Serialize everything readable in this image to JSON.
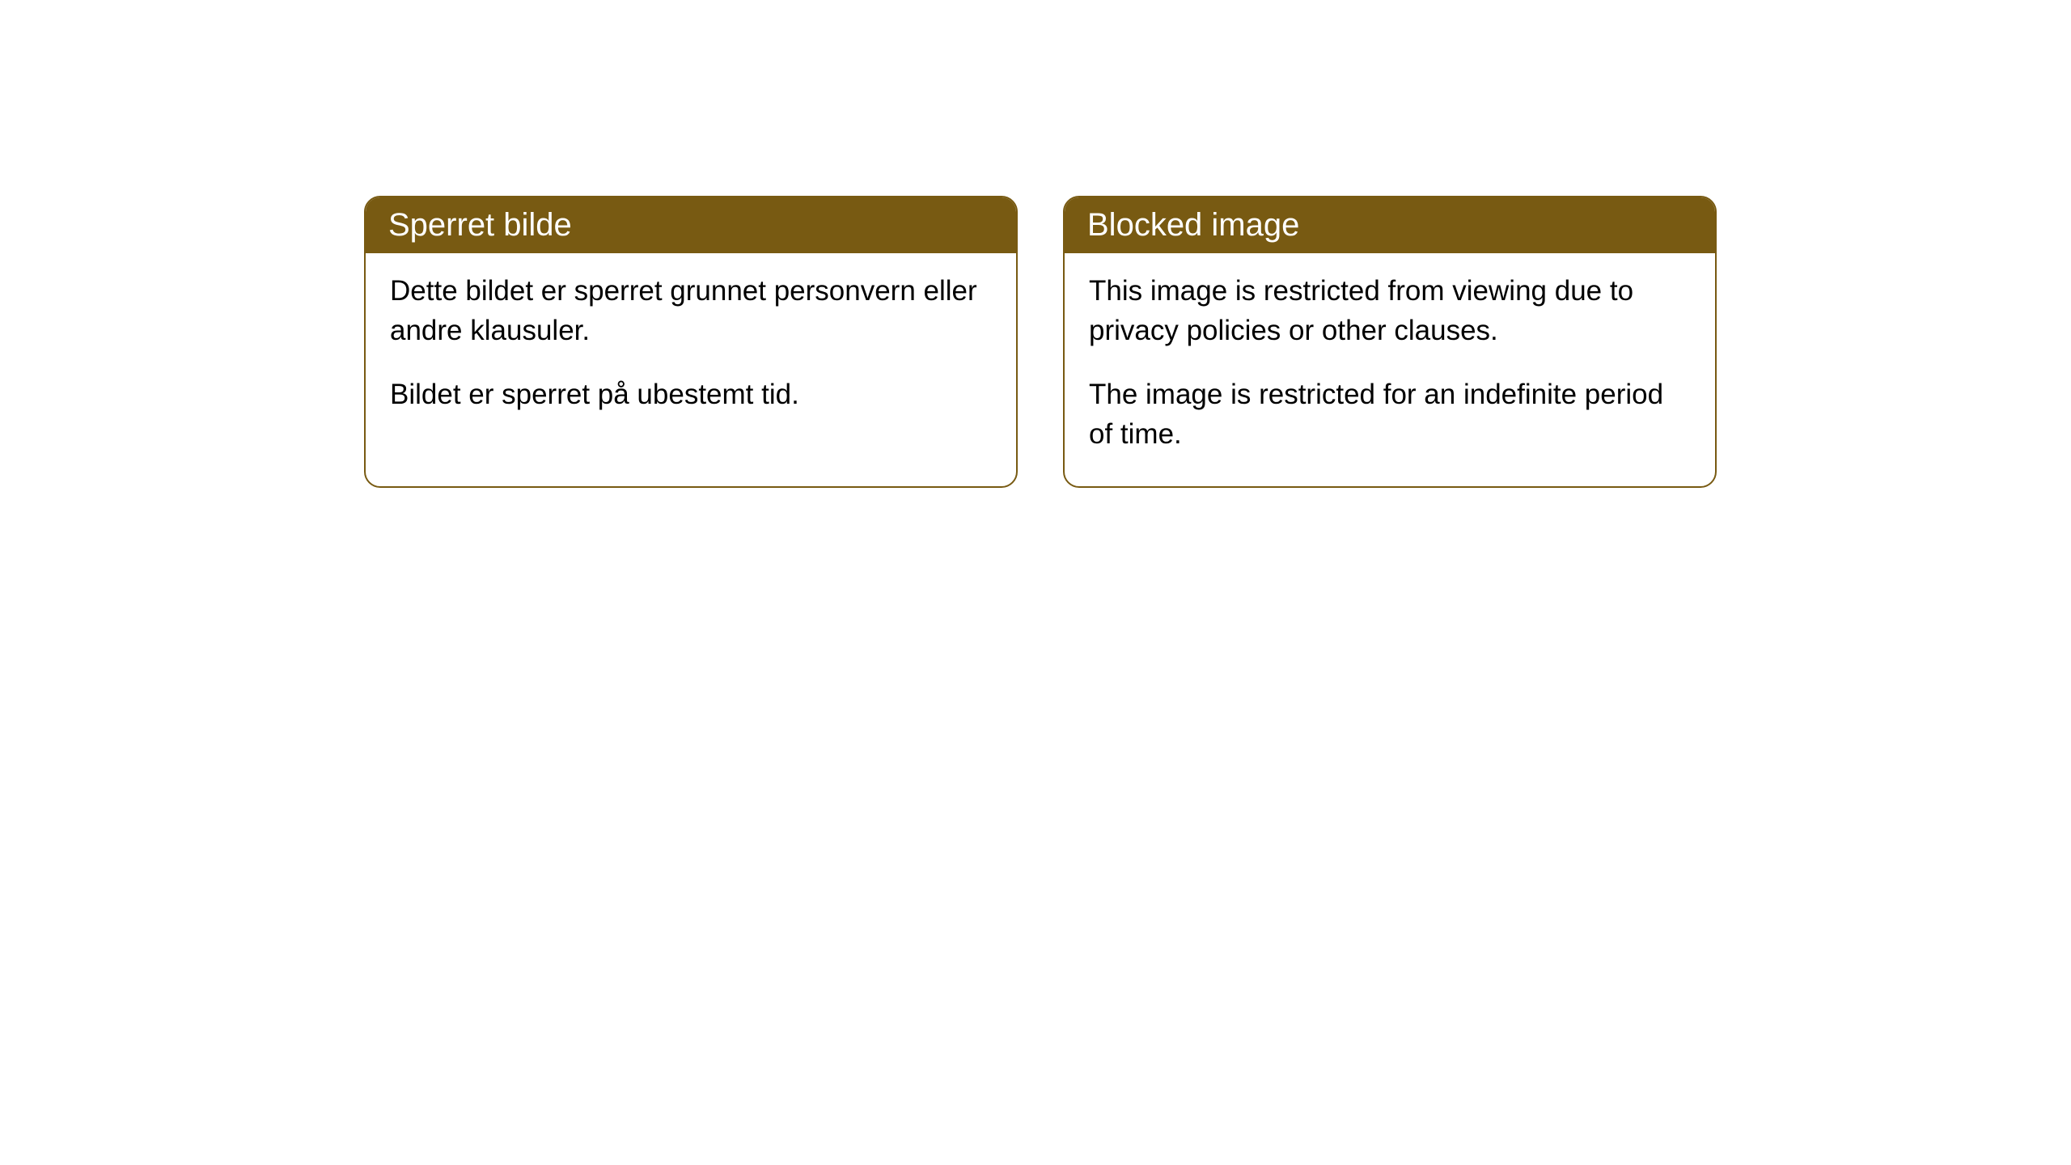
{
  "cards": [
    {
      "title": "Sperret bilde",
      "paragraph1": "Dette bildet er sperret grunnet personvern eller andre klausuler.",
      "paragraph2": "Bildet er sperret på ubestemt tid."
    },
    {
      "title": "Blocked image",
      "paragraph1": "This image is restricted from viewing due to privacy policies or other clauses.",
      "paragraph2": "The image is restricted for an indefinite period of time."
    }
  ],
  "styling": {
    "header_background": "#785a12",
    "header_text_color": "#ffffff",
    "border_color": "#785a12",
    "body_background": "#ffffff",
    "body_text_color": "#000000",
    "border_radius": 20,
    "title_fontsize": 40,
    "body_fontsize": 35
  }
}
